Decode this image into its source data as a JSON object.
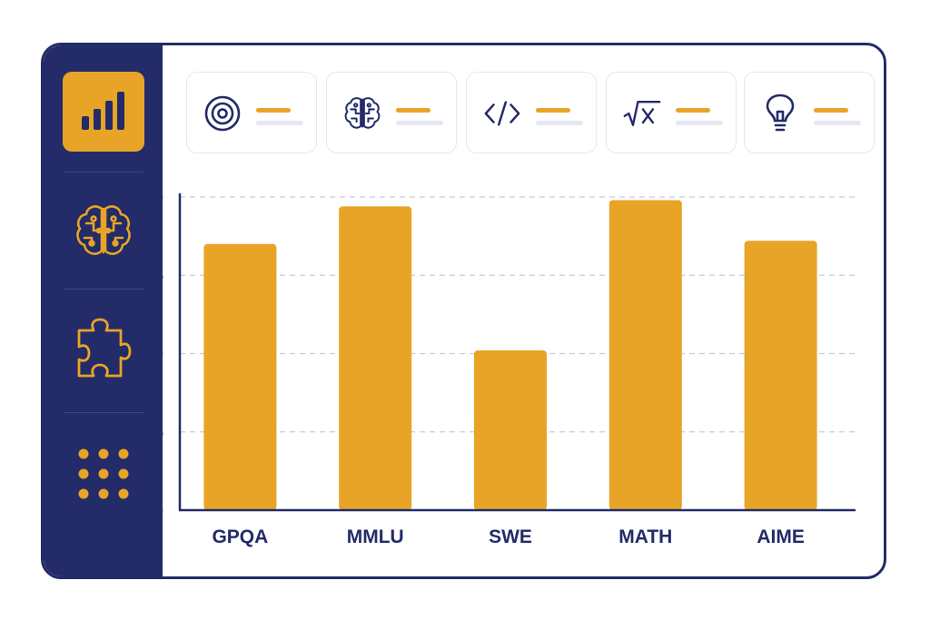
{
  "colors": {
    "navy": "#232b68",
    "accent": "#e8a427",
    "grid": "#c8cbe3",
    "card_border": "#e7e8ee"
  },
  "sidebar": {
    "items": [
      {
        "icon": "bar-chart-icon",
        "active": true
      },
      {
        "icon": "brain-circuit-icon",
        "active": false
      },
      {
        "icon": "puzzle-piece-icon",
        "active": false
      },
      {
        "icon": "grid-dots-icon",
        "active": false
      }
    ]
  },
  "cards": [
    {
      "icon": "target-icon"
    },
    {
      "icon": "brain-icon"
    },
    {
      "icon": "code-icon"
    },
    {
      "icon": "square-root-icon"
    },
    {
      "icon": "lightbulb-icon"
    }
  ],
  "chart_data": {
    "type": "bar",
    "categories": [
      "GPQA",
      "MMLU",
      "SWE",
      "MATH",
      "AIME"
    ],
    "values": [
      85,
      97,
      51,
      99,
      86
    ],
    "ylim": [
      0,
      100
    ],
    "yticks": [
      0,
      25,
      50,
      75,
      100
    ],
    "grid": true,
    "legend": "none",
    "color": "#e8a427"
  }
}
